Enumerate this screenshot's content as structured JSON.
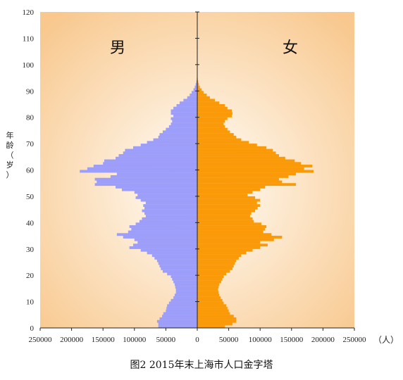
{
  "chart_data": {
    "type": "bar",
    "orientation": "horizontal-pyramid",
    "caption": "图2  2015年末上海市人口金字塔",
    "left_label": "男",
    "right_label": "女",
    "ylabel": "年龄（岁）",
    "xunit": "（人）",
    "ylim": [
      0,
      120
    ],
    "xlim": [
      -250000,
      250000
    ],
    "y_ticks": [
      "0",
      "10",
      "20",
      "30",
      "40",
      "50",
      "60",
      "70",
      "80",
      "90",
      "100",
      "110",
      "120"
    ],
    "x_ticks": [
      "250000",
      "200000",
      "150000",
      "100000",
      "50000",
      "0",
      "50000",
      "100000",
      "150000",
      "200000",
      "250000"
    ],
    "colors": {
      "male": "#9d9dfa",
      "female": "#fb9a08",
      "bg_edge": "#f8c88e",
      "bg_center": "#fffdf7"
    },
    "ages": [
      0,
      1,
      2,
      3,
      4,
      5,
      6,
      7,
      8,
      9,
      10,
      11,
      12,
      13,
      14,
      15,
      16,
      17,
      18,
      19,
      20,
      21,
      22,
      23,
      24,
      25,
      26,
      27,
      28,
      29,
      30,
      31,
      32,
      33,
      34,
      35,
      36,
      37,
      38,
      39,
      40,
      41,
      42,
      43,
      44,
      45,
      46,
      47,
      48,
      49,
      50,
      51,
      52,
      53,
      54,
      55,
      56,
      57,
      58,
      59,
      60,
      61,
      62,
      63,
      64,
      65,
      66,
      67,
      68,
      69,
      70,
      71,
      72,
      73,
      74,
      75,
      76,
      77,
      78,
      79,
      80,
      81,
      82,
      83,
      84,
      85,
      86,
      87,
      88,
      89,
      90,
      91,
      92,
      93,
      94,
      95,
      96,
      97,
      98,
      99,
      100
    ],
    "series": [
      {
        "name": "男",
        "values": [
          62000,
          62000,
          64000,
          60000,
          56000,
          54000,
          50000,
          49000,
          48000,
          45000,
          42000,
          38000,
          36000,
          34000,
          34000,
          35000,
          36000,
          38000,
          40000,
          42000,
          48000,
          55000,
          58000,
          60000,
          62000,
          64000,
          68000,
          72000,
          80000,
          90000,
          108000,
          102000,
          95000,
          100000,
          118000,
          128000,
          110000,
          105000,
          108000,
          98000,
          92000,
          88000,
          82000,
          84000,
          88000,
          84000,
          86000,
          82000,
          90000,
          98000,
          95000,
          100000,
          120000,
          130000,
          163000,
          160000,
          163000,
          138000,
          128000,
          187000,
          175000,
          165000,
          150000,
          148000,
          130000,
          125000,
          118000,
          115000,
          102000,
          90000,
          80000,
          70000,
          62000,
          60000,
          55000,
          50000,
          45000,
          42000,
          40000,
          42000,
          38000,
          42000,
          42000,
          38000,
          33000,
          28000,
          22000,
          16000,
          12000,
          9000,
          6000,
          4000,
          2500,
          1500,
          800,
          400,
          200,
          100,
          50,
          20,
          10
        ]
      },
      {
        "name": "女",
        "values": [
          44000,
          56000,
          62000,
          62000,
          58000,
          52000,
          50000,
          48000,
          46000,
          42000,
          40000,
          37000,
          35000,
          34000,
          33000,
          34000,
          35000,
          38000,
          40000,
          42000,
          46000,
          52000,
          56000,
          58000,
          60000,
          62000,
          66000,
          70000,
          78000,
          88000,
          100000,
          112000,
          100000,
          122000,
          135000,
          118000,
          105000,
          108000,
          110000,
          102000,
          90000,
          88000,
          84000,
          86000,
          92000,
          96000,
          100000,
          95000,
          100000,
          92000,
          80000,
          88000,
          100000,
          108000,
          157000,
          135000,
          130000,
          145000,
          157000,
          185000,
          170000,
          183000,
          165000,
          155000,
          140000,
          130000,
          125000,
          120000,
          110000,
          95000,
          82000,
          70000,
          62000,
          58000,
          52000,
          48000,
          44000,
          42000,
          44000,
          48000,
          55000,
          56000,
          55000,
          48000,
          44000,
          35000,
          28000,
          20000,
          15000,
          10000,
          7000,
          4000,
          2500,
          1500,
          800,
          400,
          200,
          100,
          50,
          20,
          10
        ]
      }
    ]
  }
}
